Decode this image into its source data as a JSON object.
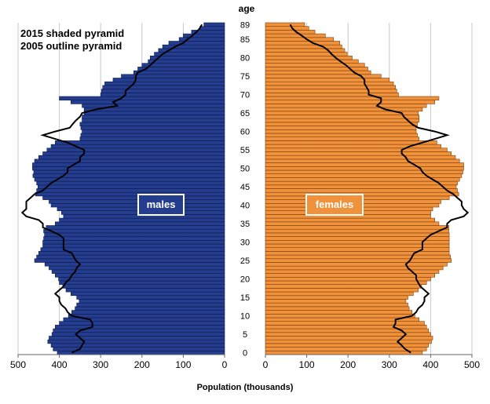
{
  "chart_data": {
    "type": "population-pyramid",
    "title_lines": [
      "2015 shaded pyramid",
      "2005 outline pyramid"
    ],
    "age_axis_label": "age",
    "age_tick_labels": [
      "0",
      "5",
      "10",
      "15",
      "20",
      "25",
      "30",
      "35",
      "40",
      "45",
      "50",
      "55",
      "60",
      "65",
      "70",
      "75",
      "80",
      "85",
      "89"
    ],
    "x_tick_labels_left": [
      "500",
      "400",
      "300",
      "200",
      "100",
      "0"
    ],
    "x_tick_labels_right": [
      "0",
      "100",
      "200",
      "300",
      "400",
      "500"
    ],
    "xlabel": "Population (thousands)",
    "xlim": [
      0,
      500
    ],
    "series": [
      {
        "name": "males",
        "color": "#253d8f",
        "labelColor": "#253d8f"
      },
      {
        "name": "females",
        "color": "#f0923c",
        "labelColor": "#f0923c"
      }
    ],
    "ages": [
      0,
      1,
      2,
      3,
      4,
      5,
      6,
      7,
      8,
      9,
      10,
      11,
      12,
      13,
      14,
      15,
      16,
      17,
      18,
      19,
      20,
      21,
      22,
      23,
      24,
      25,
      26,
      27,
      28,
      29,
      30,
      31,
      32,
      33,
      34,
      35,
      36,
      37,
      38,
      39,
      40,
      41,
      42,
      43,
      44,
      45,
      46,
      47,
      48,
      49,
      50,
      51,
      52,
      53,
      54,
      55,
      56,
      57,
      58,
      59,
      60,
      61,
      62,
      63,
      64,
      65,
      66,
      67,
      68,
      69,
      70,
      71,
      72,
      73,
      74,
      75,
      76,
      77,
      78,
      79,
      80,
      81,
      82,
      83,
      84,
      85,
      86,
      87,
      88,
      89
    ],
    "males_2015": [
      405,
      415,
      420,
      428,
      425,
      418,
      415,
      410,
      400,
      390,
      378,
      370,
      362,
      358,
      352,
      358,
      372,
      384,
      392,
      400,
      402,
      410,
      418,
      425,
      435,
      460,
      455,
      450,
      445,
      440,
      440,
      438,
      436,
      438,
      432,
      410,
      400,
      390,
      395,
      405,
      420,
      425,
      440,
      458,
      455,
      452,
      455,
      460,
      464,
      462,
      465,
      465,
      460,
      450,
      440,
      430,
      420,
      410,
      350,
      348,
      345,
      348,
      350,
      345,
      345,
      340,
      340,
      345,
      372,
      400,
      300,
      298,
      295,
      290,
      270,
      250,
      220,
      210,
      200,
      185,
      180,
      170,
      160,
      150,
      135,
      110,
      100,
      80,
      60,
      50
    ],
    "females_2015": [
      380,
      390,
      395,
      402,
      405,
      400,
      395,
      390,
      385,
      372,
      362,
      355,
      348,
      345,
      340,
      345,
      358,
      370,
      378,
      390,
      400,
      410,
      420,
      430,
      440,
      450,
      448,
      445,
      445,
      445,
      445,
      445,
      445,
      444,
      444,
      420,
      410,
      400,
      400,
      405,
      420,
      425,
      445,
      468,
      465,
      462,
      465,
      470,
      475,
      478,
      480,
      480,
      470,
      460,
      450,
      440,
      425,
      415,
      372,
      368,
      365,
      365,
      368,
      372,
      372,
      370,
      380,
      390,
      410,
      420,
      322,
      318,
      315,
      310,
      300,
      280,
      255,
      248,
      240,
      225,
      210,
      198,
      192,
      185,
      180,
      165,
      145,
      120,
      105,
      95
    ],
    "males_2005": [
      370,
      350,
      345,
      340,
      350,
      360,
      350,
      320,
      320,
      325,
      370,
      380,
      385,
      395,
      400,
      400,
      410,
      400,
      390,
      385,
      375,
      370,
      362,
      358,
      350,
      360,
      365,
      370,
      390,
      390,
      390,
      390,
      400,
      420,
      440,
      440,
      450,
      480,
      490,
      480,
      480,
      480,
      470,
      460,
      440,
      430,
      420,
      405,
      390,
      380,
      380,
      365,
      350,
      350,
      340,
      340,
      360,
      380,
      410,
      440,
      410,
      375,
      368,
      360,
      350,
      345,
      310,
      260,
      270,
      250,
      240,
      240,
      230,
      220,
      215,
      215,
      210,
      190,
      180,
      170,
      160,
      150,
      135,
      120,
      100,
      90,
      78,
      68,
      60,
      55
    ],
    "females_2005": [
      352,
      338,
      330,
      320,
      330,
      340,
      330,
      310,
      315,
      315,
      355,
      365,
      370,
      380,
      385,
      385,
      395,
      385,
      375,
      370,
      365,
      365,
      355,
      345,
      340,
      350,
      355,
      360,
      380,
      380,
      380,
      390,
      400,
      420,
      440,
      440,
      450,
      480,
      490,
      480,
      475,
      475,
      465,
      455,
      440,
      430,
      420,
      405,
      390,
      380,
      375,
      360,
      345,
      340,
      330,
      330,
      350,
      380,
      410,
      440,
      410,
      370,
      355,
      345,
      335,
      330,
      290,
      270,
      280,
      280,
      250,
      250,
      245,
      240,
      240,
      232,
      215,
      205,
      195,
      182,
      170,
      160,
      152,
      140,
      115,
      100,
      88,
      75,
      65,
      60
    ]
  }
}
